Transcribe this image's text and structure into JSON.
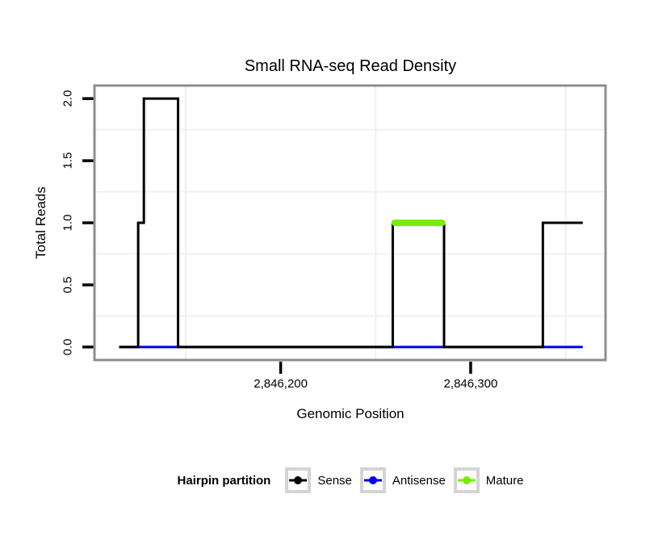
{
  "title": "Small RNA-seq Read Density",
  "axes": {
    "x": {
      "label": "Genomic Position",
      "ticks": [
        {
          "value": 2846200,
          "label": "2,846,200"
        },
        {
          "value": 2846300,
          "label": "2,846,300"
        }
      ]
    },
    "y": {
      "label": "Total Reads",
      "ticks": [
        {
          "value": 0.0,
          "label": "0.0"
        },
        {
          "value": 0.5,
          "label": "0.5"
        },
        {
          "value": 1.0,
          "label": "1.0"
        },
        {
          "value": 1.5,
          "label": "1.5"
        },
        {
          "value": 2.0,
          "label": "2.0"
        }
      ]
    }
  },
  "legend": {
    "title": "Hairpin partition",
    "items": [
      {
        "label": "Sense",
        "color": "#000000"
      },
      {
        "label": "Antisense",
        "color": "#0000ee"
      },
      {
        "label": "Mature",
        "color": "#76ee00"
      }
    ]
  },
  "panel": {
    "background": "#ffffff",
    "border_color": "#8e8e8e",
    "grid_color": "#f0f0f0",
    "tick_color": "#000000",
    "legend_key_border": "#d4d4d4"
  },
  "chart_data": {
    "type": "line",
    "subtype": "step-density",
    "title": "Small RNA-seq Read Density",
    "xlabel": "Genomic Position",
    "ylabel": "Total Reads",
    "xlim": [
      2846102,
      2846371
    ],
    "ylim": [
      -0.105,
      2.105
    ],
    "x_major_ticks": [
      2846200,
      2846300
    ],
    "y_major_ticks": [
      0,
      0.5,
      1,
      1.5,
      2
    ],
    "x_minor_gridlines": [
      2846150,
      2846250,
      2846350
    ],
    "y_minor_gridlines": [
      0.25,
      0.75,
      1.25,
      1.75
    ],
    "grid": "minor-only",
    "legend_position": "bottom",
    "series": [
      {
        "name": "Sense",
        "color": "#000000",
        "stroke_width": 3,
        "z": 2,
        "segments": [
          [
            2846115,
            2846125,
            0
          ],
          [
            2846125,
            2846128,
            1
          ],
          [
            2846128,
            2846146,
            2
          ],
          [
            2846146,
            2846259,
            0
          ],
          [
            2846259,
            2846286,
            1
          ],
          [
            2846286,
            2846338,
            0
          ],
          [
            2846338,
            2846359,
            1
          ]
        ]
      },
      {
        "name": "Antisense",
        "color": "#0000ee",
        "stroke_width": 3,
        "z": 1,
        "segments": [
          [
            2846115,
            2846359,
            0
          ]
        ]
      },
      {
        "name": "Mature",
        "color": "#76ee00",
        "stroke_width": 8,
        "linecap": "round",
        "z": 3,
        "segments": [
          [
            2846260,
            2846285,
            1
          ]
        ]
      }
    ]
  }
}
